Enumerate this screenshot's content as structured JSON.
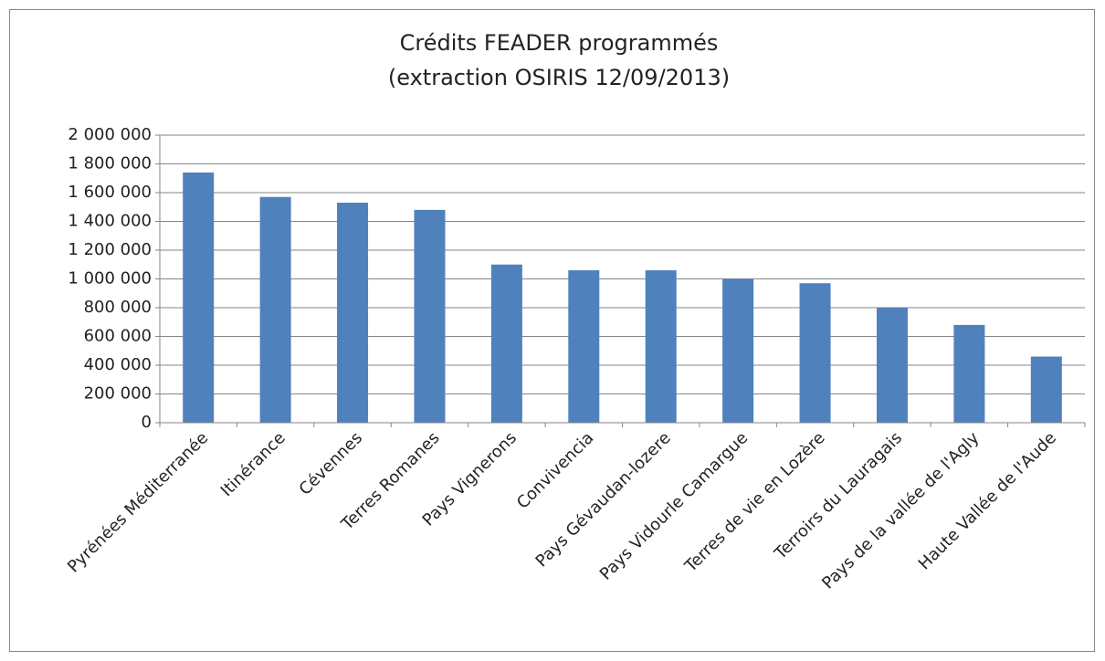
{
  "chart_data": {
    "type": "bar",
    "title": "Crédits FEADER programmés",
    "subtitle": "(extraction OSIRIS 12/09/2013)",
    "categories": [
      "Pyrénées Méditerranée",
      "Itinérance",
      "Cévennes",
      "Terres Romanes",
      "Pays Vignerons",
      "Convivencia",
      "Pays Gévaudan-lozere",
      "Pays Vidourle Camargue",
      "Terres de vie en Lozère",
      "Terroirs du Lauragais",
      "Pays de la vallée de l'Agly",
      "Haute Vallée de l'Aude"
    ],
    "values": [
      1740000,
      1570000,
      1530000,
      1480000,
      1100000,
      1060000,
      1060000,
      1000000,
      970000,
      800000,
      680000,
      460000
    ],
    "color": "#4f81bd",
    "ylim": [
      0,
      2000000
    ],
    "yticks": [
      0,
      {
        "value": 200000,
        "label": "200 000"
      },
      {
        "value": 400000,
        "label": "400 000"
      },
      {
        "value": 600000,
        "label": "600 000"
      },
      {
        "value": 800000,
        "label": "800 000"
      },
      {
        "value": 1000000,
        "label": "1 000 000"
      },
      {
        "value": 1200000,
        "label": "1 200 000"
      },
      {
        "value": 1400000,
        "label": "1 400 000"
      },
      {
        "value": 1600000,
        "label": "1 600 000"
      },
      {
        "value": 1800000,
        "label": "1 800 000"
      },
      {
        "value": 2000000,
        "label": "2 000 000"
      }
    ],
    "grid": true
  }
}
